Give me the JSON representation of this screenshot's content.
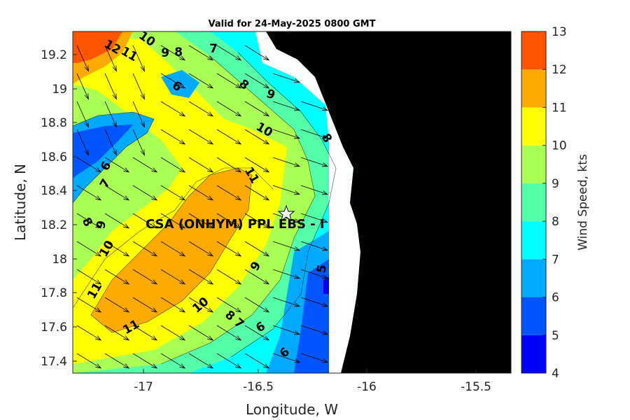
{
  "title": "Valid for 24-May-2025 0800 GMT",
  "xlabel": "Longitude, W",
  "ylabel": "Latitude, N",
  "colorbar_label": "Wind Speed, kts",
  "overlay_text": "CSA (ONHYM) PPL EBS  - I",
  "x_ticks": [
    "-17",
    "-16.5",
    "-16",
    "-15.5"
  ],
  "y_ticks": [
    "19.2",
    "19",
    "18.8",
    "18.6",
    "18.4",
    "18.2",
    "18",
    "17.8",
    "17.6",
    "17.4"
  ],
  "colorbar": {
    "ticks": [
      "13",
      "12",
      "11",
      "10",
      "9",
      "8",
      "7",
      "6",
      "5",
      "4"
    ],
    "levels": [
      {
        "min": 4,
        "max": 5,
        "color": "#0000ff"
      },
      {
        "min": 5,
        "max": 6,
        "color": "#0055ff"
      },
      {
        "min": 6,
        "max": 7,
        "color": "#00aaff"
      },
      {
        "min": 7,
        "max": 8,
        "color": "#00ffff"
      },
      {
        "min": 8,
        "max": 9,
        "color": "#55ffaa"
      },
      {
        "min": 9,
        "max": 10,
        "color": "#aaff55"
      },
      {
        "min": 10,
        "max": 11,
        "color": "#ffff00"
      },
      {
        "min": 11,
        "max": 12,
        "color": "#ffaa00"
      },
      {
        "min": 12,
        "max": 13,
        "color": "#ff5500"
      }
    ]
  },
  "contour_labels": [
    "12",
    "11",
    "10",
    "9",
    "8",
    "7",
    "6",
    "8",
    "9",
    "10",
    "8",
    "6",
    "7",
    "11",
    "8",
    "9",
    "10",
    "11",
    "9",
    "10",
    "8",
    "7",
    "6",
    "5",
    "6",
    "11"
  ],
  "star_marker": {
    "lon": -16.35,
    "lat": 18.28
  },
  "colors": {
    "land": "#000000",
    "no_data": "#ffffff"
  }
}
